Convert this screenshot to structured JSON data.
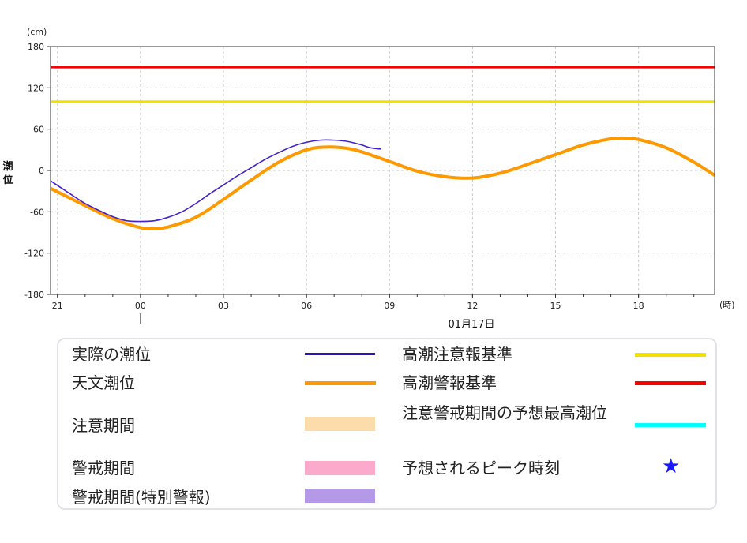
{
  "chart_data": {
    "type": "line",
    "y_unit": "(cm)",
    "x_unit": "(時)",
    "ylabel": "潮位",
    "ylim": [
      -180,
      180
    ],
    "yticks": [
      180,
      120,
      60,
      0,
      -60,
      -120,
      -180
    ],
    "xlim_hours": [
      -3.25,
      20.75
    ],
    "xticks": [
      {
        "h": -3,
        "label": "21"
      },
      {
        "h": 0,
        "label": "00"
      },
      {
        "h": 3,
        "label": "03"
      },
      {
        "h": 6,
        "label": "06"
      },
      {
        "h": 9,
        "label": "09"
      },
      {
        "h": 12,
        "label": "12"
      },
      {
        "h": 15,
        "label": "15"
      },
      {
        "h": 18,
        "label": "18"
      }
    ],
    "date_label": "01月17日",
    "date_marker_hour": 0,
    "reference_lines": [
      {
        "name": "高潮警報基準",
        "value": 150,
        "color": "#ff0000"
      },
      {
        "name": "高潮注意報基準",
        "value": 100,
        "color": "#f2e000"
      }
    ],
    "series": [
      {
        "name": "天文潮位",
        "color": "#ff9900",
        "x": [
          -3.25,
          -2,
          -1,
          0,
          0.5,
          1,
          2,
          3,
          4,
          5,
          6,
          6.75,
          7.5,
          8,
          9,
          10,
          11,
          12,
          13,
          14,
          15,
          16,
          17,
          17.5,
          18,
          19,
          20,
          20.75
        ],
        "y": [
          -26,
          -51,
          -70,
          -83,
          -84,
          -82,
          -68,
          -42,
          -14,
          12,
          30,
          34,
          32,
          27,
          13,
          -1,
          -9,
          -11,
          -4,
          9,
          23,
          37,
          46,
          47,
          45,
          33,
          12,
          -7
        ]
      },
      {
        "name": "実際の潮位",
        "color": "#4422cc",
        "x": [
          -3.25,
          -2.5,
          -2,
          -1.5,
          -1,
          -0.5,
          0,
          0.5,
          1,
          1.5,
          2,
          2.5,
          3,
          3.5,
          4,
          4.5,
          5,
          5.5,
          6,
          6.5,
          7,
          7.5,
          8,
          8.3,
          8.7
        ],
        "y": [
          -15,
          -35,
          -48,
          -58,
          -67,
          -73,
          -74,
          -73,
          -68,
          -60,
          -48,
          -34,
          -21,
          -8,
          4,
          16,
          26,
          35,
          41,
          44,
          44,
          42,
          37,
          33,
          31
        ]
      }
    ]
  },
  "legend": {
    "items": [
      {
        "label": "実際の潮位",
        "kind": "line",
        "color": "#3311bb"
      },
      {
        "label": "天文潮位",
        "kind": "line",
        "color": "#ff9900"
      },
      {
        "label": "注意期間",
        "kind": "band",
        "color": "#fddcab"
      },
      {
        "label": "警戒期間",
        "kind": "band",
        "color": "#fcaacb"
      },
      {
        "label": "警戒期間(特別警報)",
        "kind": "band",
        "color": "#b49ae6"
      },
      {
        "label": "高潮注意報基準",
        "kind": "line",
        "color": "#f2e000"
      },
      {
        "label": "高潮警報基準",
        "kind": "line",
        "color": "#ff0000"
      },
      {
        "label": "注意警戒期間の予想最高潮位",
        "kind": "line",
        "color": "#00ffff"
      },
      {
        "label": "予想されるピーク時刻",
        "kind": "star",
        "color": "#1a1aff",
        "symbol": "★"
      }
    ]
  }
}
